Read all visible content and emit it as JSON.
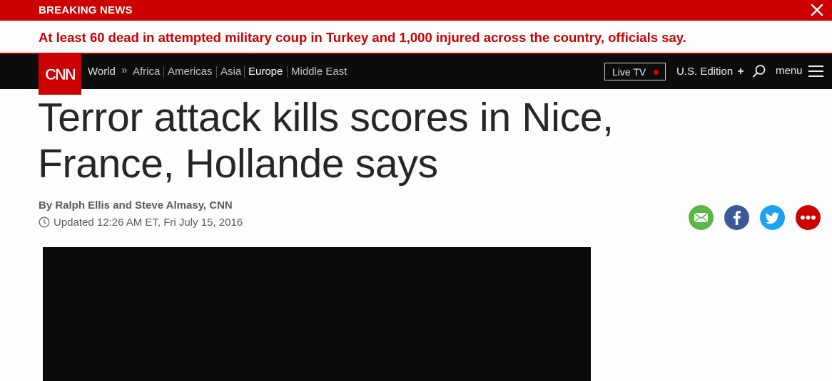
{
  "breaking": {
    "label": "BREAKING NEWS",
    "text": "At least 60 dead in attempted military coup in Turkey and 1,000 injured across the country, officials say."
  },
  "nav": {
    "logo_text": "CNN",
    "section": "World",
    "raquo": "»",
    "items": [
      {
        "label": "Africa"
      },
      {
        "label": "Americas"
      },
      {
        "label": "Asia"
      },
      {
        "label": "Europe"
      },
      {
        "label": "Middle East"
      }
    ],
    "live_tv": "Live TV",
    "edition": "U.S. Edition",
    "edition_plus": "+",
    "menu": "menu"
  },
  "article": {
    "headline_line1": "Terror attack kills scores in Nice,",
    "headline_line2": "France, Hollande says",
    "byline": "By Ralph Ellis and Steve Almasy, CNN",
    "updated": "Updated 12:26 AM ET, Fri July 15, 2016"
  },
  "share": {
    "icons": [
      "email-icon",
      "facebook-icon",
      "twitter-icon",
      "more-icon"
    ]
  },
  "colors": {
    "brand_red": "#cc0000",
    "nav_bg": "#0c0c0c",
    "email_green": "#5bb646",
    "facebook_blue": "#3b5998",
    "twitter_blue": "#1da1f2",
    "more_red": "#cc0000"
  }
}
